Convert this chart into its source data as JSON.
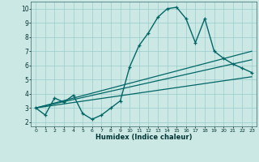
{
  "title": "",
  "xlabel": "Humidex (Indice chaleur)",
  "bg_color": "#cce8e4",
  "grid_color": "#99cccc",
  "line_color": "#006666",
  "xlim": [
    -0.5,
    23.5
  ],
  "ylim": [
    1.7,
    10.5
  ],
  "x_ticks": [
    0,
    1,
    2,
    3,
    4,
    5,
    6,
    7,
    8,
    9,
    10,
    11,
    12,
    13,
    14,
    15,
    16,
    17,
    18,
    19,
    20,
    21,
    22,
    23
  ],
  "y_ticks": [
    2,
    3,
    4,
    5,
    6,
    7,
    8,
    9,
    10
  ],
  "main_x": [
    0,
    1,
    2,
    3,
    4,
    5,
    6,
    7,
    8,
    9,
    10,
    11,
    12,
    13,
    14,
    15,
    16,
    17,
    18,
    19,
    20,
    21,
    22,
    23
  ],
  "main_y": [
    3.0,
    2.5,
    3.7,
    3.4,
    3.9,
    2.6,
    2.2,
    2.5,
    3.0,
    3.5,
    5.9,
    7.4,
    8.3,
    9.4,
    10.0,
    10.1,
    9.3,
    7.6,
    9.3,
    7.0,
    6.5,
    6.1,
    5.8,
    5.5
  ],
  "line1_x": [
    0,
    23
  ],
  "line1_y": [
    3.0,
    7.0
  ],
  "line2_x": [
    0,
    23
  ],
  "line2_y": [
    3.0,
    6.4
  ],
  "line3_x": [
    0,
    23
  ],
  "line3_y": [
    3.0,
    5.2
  ]
}
